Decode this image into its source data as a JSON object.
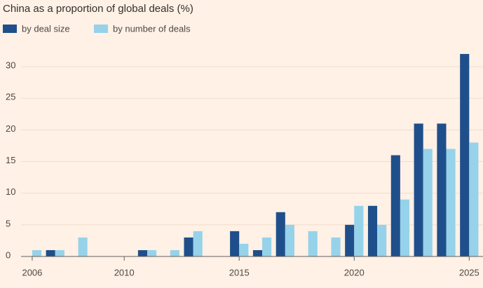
{
  "chart_data": {
    "type": "bar",
    "title": "China as a proportion of global deals (%)",
    "x": [
      2006,
      2007,
      2008,
      2009,
      2010,
      2011,
      2012,
      2013,
      2014,
      2015,
      2016,
      2017,
      2018,
      2019,
      2020,
      2021,
      2022,
      2023,
      2024,
      2025
    ],
    "series": [
      {
        "name": "by deal size",
        "color": "#1f4f8b",
        "values": [
          0,
          1,
          0,
          0,
          0,
          1,
          0,
          3,
          0,
          4,
          1,
          7,
          0,
          0,
          5,
          8,
          16,
          21,
          21,
          32
        ]
      },
      {
        "name": "by number of deals",
        "color": "#96d2ea",
        "values": [
          1,
          1,
          3,
          0,
          0,
          1,
          1,
          4,
          0,
          2,
          3,
          5,
          4,
          3,
          8,
          5,
          9,
          17,
          17,
          18
        ]
      }
    ],
    "xlim": [
      2004.6,
      2025.6
    ],
    "xticks": [
      2006,
      2010,
      2015,
      2020,
      2025
    ],
    "ylim": [
      0,
      33
    ],
    "yticks": [
      0,
      5,
      10,
      15,
      20,
      25,
      30
    ],
    "grid": true
  }
}
